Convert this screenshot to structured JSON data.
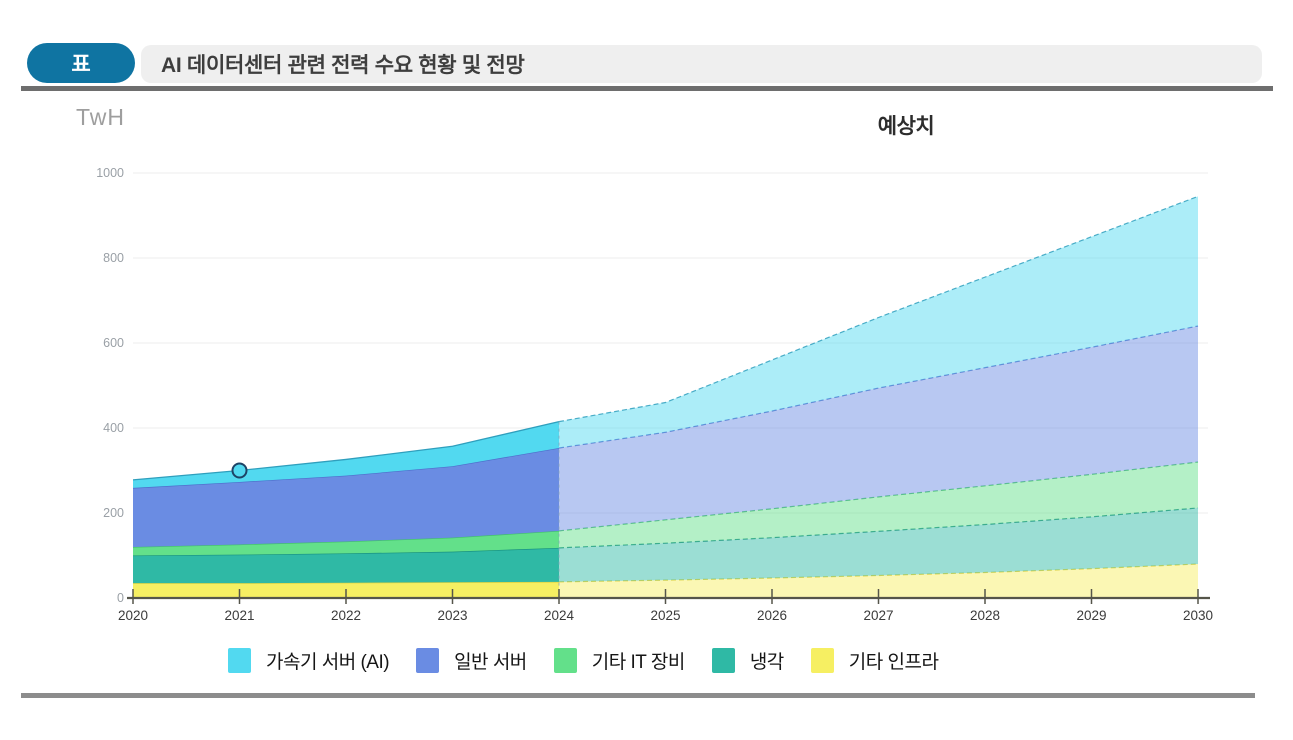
{
  "header": {
    "badge_label": "표",
    "title": "AI 데이터센터 관련 전력 수요 현황 및 전망"
  },
  "chart": {
    "unit_label": "TwH",
    "annotation": "예상치"
  },
  "chart_data": {
    "type": "area",
    "stacked": true,
    "title": "AI 데이터센터 관련 전력 수요 현황 및 전망",
    "ylabel": "TwH",
    "xlabel": "",
    "x": [
      2020,
      2021,
      2022,
      2023,
      2024,
      2025,
      2026,
      2027,
      2028,
      2029,
      2030
    ],
    "y_ticks": [
      0,
      200,
      400,
      600,
      800,
      1000
    ],
    "ylim": [
      0,
      1000
    ],
    "grid": true,
    "legend_position": "bottom",
    "forecast_from": 2024,
    "forecast_label": "예상치",
    "stack_order_note": "series listed top layer first; chart stacks them bottom-up in reverse order; values after forecast_from are projections drawn in lighter shades with dashed edges",
    "series": [
      {
        "name": "가속기 서버 (AI)",
        "color": "#52d9f0",
        "stroke": "#2f9fbd",
        "values": [
          19,
          27,
          38,
          47,
          62,
          70,
          120,
          166,
          213,
          260,
          305
        ]
      },
      {
        "name": "일반 서버",
        "color": "#6a8ce3",
        "stroke": "#4d6ecb",
        "values": [
          139,
          147,
          155,
          168,
          195,
          206,
          230,
          256,
          278,
          299,
          320
        ]
      },
      {
        "name": "기타 IT 장비",
        "color": "#63e08a",
        "stroke": "#41c06b",
        "values": [
          20,
          24,
          28,
          33,
          40,
          55,
          68,
          81,
          91,
          100,
          108
        ]
      },
      {
        "name": "냉각",
        "color": "#2fb9a5",
        "stroke": "#179180",
        "values": [
          65,
          67,
          69,
          72,
          80,
          87,
          95,
          104,
          113,
          122,
          132
        ]
      },
      {
        "name": "기타 인프라",
        "color": "#f6ef62",
        "stroke": "#d9cf3d",
        "values": [
          35,
          35,
          36,
          37,
          38,
          42,
          47,
          53,
          60,
          69,
          80
        ]
      }
    ],
    "totals": [
      278,
      300,
      326,
      357,
      415,
      460,
      560,
      660,
      755,
      850,
      945
    ],
    "marker": {
      "x": 2021,
      "y": 300,
      "series": "total"
    }
  },
  "colors": {
    "badge_bg": "#0f74a2",
    "title_bar_bg": "#efefef",
    "header_rule": "#6e6e6e",
    "bottom_rule": "#8c8c8c",
    "axis": "#55554a",
    "grid_line": "#ececec",
    "y_tick_text": "#9aa0a6",
    "x_tick_text": "#3b3b3b"
  }
}
